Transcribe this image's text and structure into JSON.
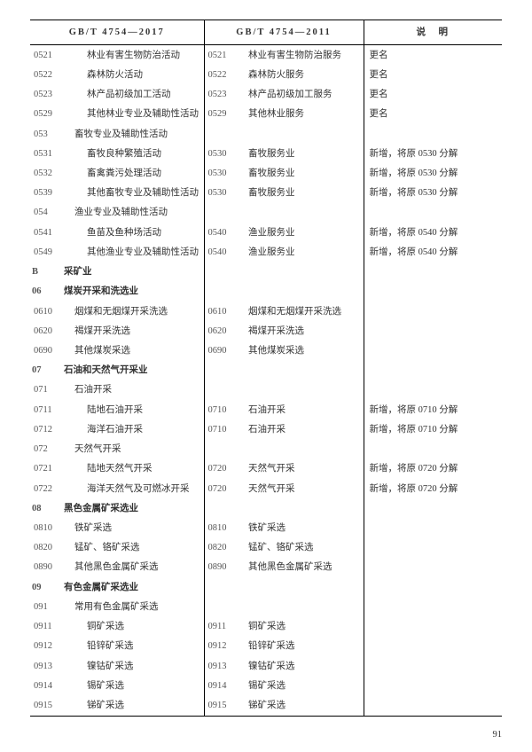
{
  "header": {
    "col1": "GB/T 4754—2017",
    "col2": "GB/T 4754—2011",
    "col3": "说　明"
  },
  "page_number": "91",
  "rows": [
    {
      "c1": "0521",
      "n1": "林业有害生物防治活动",
      "i1": 2,
      "c2": "0521",
      "n2": "林业有害生物防治服务",
      "i2": 1,
      "note": "更名"
    },
    {
      "c1": "0522",
      "n1": "森林防火活动",
      "i1": 2,
      "c2": "0522",
      "n2": "森林防火服务",
      "i2": 1,
      "note": "更名"
    },
    {
      "c1": "0523",
      "n1": "林产品初级加工活动",
      "i1": 2,
      "c2": "0523",
      "n2": "林产品初级加工服务",
      "i2": 1,
      "note": "更名"
    },
    {
      "c1": "0529",
      "n1": "其他林业专业及辅助性活动",
      "i1": 2,
      "c2": "0529",
      "n2": "其他林业服务",
      "i2": 1,
      "note": "更名"
    },
    {
      "c1": "053",
      "n1": "畜牧专业及辅助性活动",
      "i1": 1,
      "c2": "",
      "n2": "",
      "i2": 0,
      "note": ""
    },
    {
      "c1": "0531",
      "n1": "畜牧良种繁殖活动",
      "i1": 2,
      "c2": "0530",
      "n2": "畜牧服务业",
      "i2": 1,
      "note": "新增，将原 0530 分解"
    },
    {
      "c1": "0532",
      "n1": "畜禽粪污处理活动",
      "i1": 2,
      "c2": "0530",
      "n2": "畜牧服务业",
      "i2": 1,
      "note": "新增，将原 0530 分解"
    },
    {
      "c1": "0539",
      "n1": "其他畜牧专业及辅助性活动",
      "i1": 2,
      "c2": "0530",
      "n2": "畜牧服务业",
      "i2": 1,
      "note": "新增，将原 0530 分解"
    },
    {
      "c1": "054",
      "n1": "渔业专业及辅助性活动",
      "i1": 1,
      "c2": "",
      "n2": "",
      "i2": 0,
      "note": ""
    },
    {
      "c1": "0541",
      "n1": "鱼苗及鱼种场活动",
      "i1": 2,
      "c2": "0540",
      "n2": "渔业服务业",
      "i2": 1,
      "note": "新增，将原 0540 分解"
    },
    {
      "c1": "0549",
      "n1": "其他渔业专业及辅助性活动",
      "i1": 2,
      "c2": "0540",
      "n2": "渔业服务业",
      "i2": 1,
      "note": "新增，将原 0540 分解"
    },
    {
      "c1": "B",
      "n1": "采矿业",
      "bold": true,
      "i1": 0,
      "c2": "",
      "n2": "",
      "i2": 0,
      "note": ""
    },
    {
      "c1": "06",
      "n1": "煤炭开采和洗选业",
      "bold": true,
      "i1": 0,
      "c2": "",
      "n2": "",
      "i2": 0,
      "note": ""
    },
    {
      "c1": "0610",
      "n1": "烟煤和无烟煤开采洗选",
      "i1": 1,
      "c2": "0610",
      "n2": "烟煤和无烟煤开采洗选",
      "i2": 1,
      "note": ""
    },
    {
      "c1": "0620",
      "n1": "褐煤开采洗选",
      "i1": 1,
      "c2": "0620",
      "n2": "褐煤开采洗选",
      "i2": 1,
      "note": ""
    },
    {
      "c1": "0690",
      "n1": "其他煤炭采选",
      "i1": 1,
      "c2": "0690",
      "n2": "其他煤炭采选",
      "i2": 1,
      "note": ""
    },
    {
      "c1": "07",
      "n1": "石油和天然气开采业",
      "bold": true,
      "i1": 0,
      "c2": "",
      "n2": "",
      "i2": 0,
      "note": ""
    },
    {
      "c1": "071",
      "n1": "石油开采",
      "i1": 1,
      "c2": "",
      "n2": "",
      "i2": 0,
      "note": ""
    },
    {
      "c1": "0711",
      "n1": "陆地石油开采",
      "i1": 2,
      "c2": "0710",
      "n2": "石油开采",
      "i2": 1,
      "note": "新增，将原 0710 分解"
    },
    {
      "c1": "0712",
      "n1": "海洋石油开采",
      "i1": 2,
      "c2": "0710",
      "n2": "石油开采",
      "i2": 1,
      "note": "新增，将原 0710 分解"
    },
    {
      "c1": "072",
      "n1": "天然气开采",
      "i1": 1,
      "c2": "",
      "n2": "",
      "i2": 0,
      "note": ""
    },
    {
      "c1": "0721",
      "n1": "陆地天然气开采",
      "i1": 2,
      "c2": "0720",
      "n2": "天然气开采",
      "i2": 1,
      "note": "新增，将原 0720 分解"
    },
    {
      "c1": "0722",
      "n1": "海洋天然气及可燃冰开采",
      "i1": 2,
      "c2": "0720",
      "n2": "天然气开采",
      "i2": 1,
      "note": "新增，将原 0720 分解"
    },
    {
      "c1": "08",
      "n1": "黑色金属矿采选业",
      "bold": true,
      "i1": 0,
      "c2": "",
      "n2": "",
      "i2": 0,
      "note": ""
    },
    {
      "c1": "0810",
      "n1": "铁矿采选",
      "i1": 1,
      "c2": "0810",
      "n2": "铁矿采选",
      "i2": 1,
      "note": ""
    },
    {
      "c1": "0820",
      "n1": "锰矿、铬矿采选",
      "i1": 1,
      "c2": "0820",
      "n2": "锰矿、铬矿采选",
      "i2": 1,
      "note": ""
    },
    {
      "c1": "0890",
      "n1": "其他黑色金属矿采选",
      "i1": 1,
      "c2": "0890",
      "n2": "其他黑色金属矿采选",
      "i2": 1,
      "note": ""
    },
    {
      "c1": "09",
      "n1": "有色金属矿采选业",
      "bold": true,
      "i1": 0,
      "c2": "",
      "n2": "",
      "i2": 0,
      "note": ""
    },
    {
      "c1": "091",
      "n1": "常用有色金属矿采选",
      "i1": 1,
      "c2": "",
      "n2": "",
      "i2": 0,
      "note": ""
    },
    {
      "c1": "0911",
      "n1": "铜矿采选",
      "i1": 2,
      "c2": "0911",
      "n2": "铜矿采选",
      "i2": 1,
      "note": ""
    },
    {
      "c1": "0912",
      "n1": "铅锌矿采选",
      "i1": 2,
      "c2": "0912",
      "n2": "铅锌矿采选",
      "i2": 1,
      "note": ""
    },
    {
      "c1": "0913",
      "n1": "镍钴矿采选",
      "i1": 2,
      "c2": "0913",
      "n2": "镍钴矿采选",
      "i2": 1,
      "note": ""
    },
    {
      "c1": "0914",
      "n1": "锡矿采选",
      "i1": 2,
      "c2": "0914",
      "n2": "锡矿采选",
      "i2": 1,
      "note": ""
    },
    {
      "c1": "0915",
      "n1": "锑矿采选",
      "i1": 2,
      "c2": "0915",
      "n2": "锑矿采选",
      "i2": 1,
      "note": ""
    }
  ]
}
